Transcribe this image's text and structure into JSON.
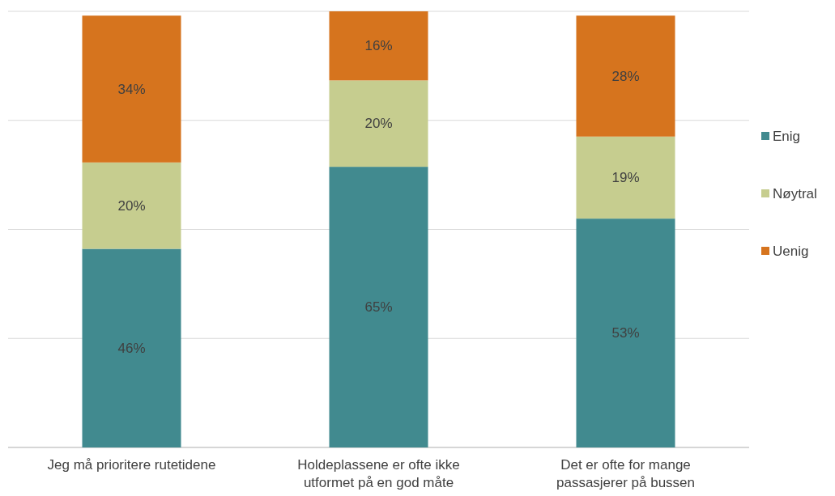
{
  "chart_data": {
    "type": "bar",
    "stacked": true,
    "categories": [
      "Jeg må prioritere rutetidene",
      "Holdeplassene er ofte ikke utformet på en god måte",
      "Det er ofte for mange passasjerer på bussen"
    ],
    "series": [
      {
        "name": "Enig",
        "color": "#418a8f",
        "values": [
          46,
          65,
          53
        ],
        "value_labels": [
          "46%",
          "65%",
          "53%"
        ]
      },
      {
        "name": "Nøytral",
        "color": "#c6cd8f",
        "values": [
          20,
          20,
          19
        ],
        "value_labels": [
          "20%",
          "20%",
          "19%"
        ]
      },
      {
        "name": "Uenig",
        "color": "#d6741e",
        "values": [
          34,
          16,
          28
        ],
        "value_labels": [
          "34%",
          "16%",
          "28%"
        ]
      }
    ],
    "tick_labels": "x",
    "grid": "y",
    "legend": "right"
  }
}
